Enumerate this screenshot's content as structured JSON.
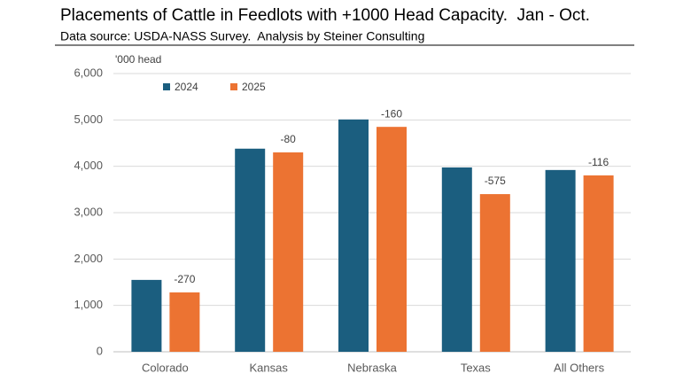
{
  "chart_data": {
    "type": "bar",
    "title": "Placements of Cattle in Feedlots with +1000 Head Capacity.  Jan - Oct.",
    "subtitle": "Data source: USDA-NASS Survey.  Analysis by Steiner Consulting",
    "y_label": "'000 head",
    "categories": [
      "Colorado",
      "Kansas",
      "Nebraska",
      "Texas",
      "All Others"
    ],
    "series": [
      {
        "name": "2024",
        "color": "#1b5e7f",
        "values": [
          1550,
          4380,
          5010,
          3975,
          3920
        ]
      },
      {
        "name": "2025",
        "color": "#ec7332",
        "values": [
          1280,
          4300,
          4850,
          3400,
          3804
        ]
      }
    ],
    "annotations": [
      -270,
      -80,
      -160,
      -575,
      -116
    ],
    "ylim": [
      0,
      6000
    ],
    "yticks": [
      0,
      {
        "value": 1000,
        "label": "1,000"
      },
      {
        "value": 2000,
        "label": "2,000"
      },
      {
        "value": 3000,
        "label": "3,000"
      },
      {
        "value": 4000,
        "label": "4,000"
      },
      {
        "value": 5000,
        "label": "5,000"
      },
      {
        "value": 6000,
        "label": "6,000"
      }
    ],
    "grid": true
  }
}
